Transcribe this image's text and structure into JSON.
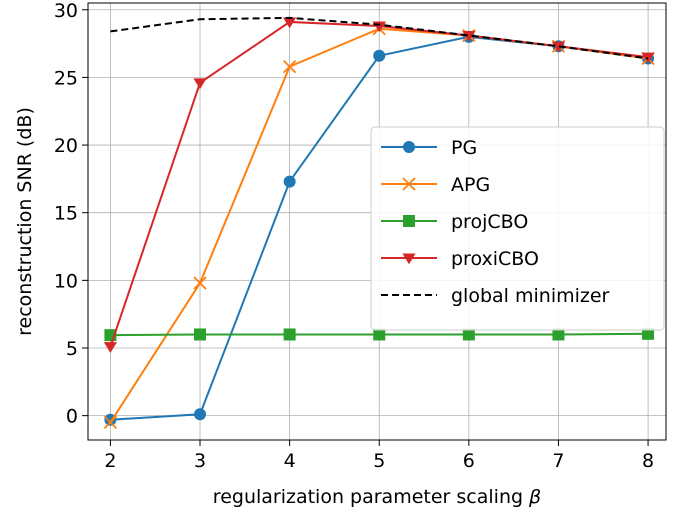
{
  "chart_data": {
    "type": "line",
    "title": "",
    "xlabel": "regularization parameter scaling",
    "xlabel_symbol": "β",
    "ylabel": "reconstruction SNR (dB)",
    "xlim": [
      1.75,
      8.2
    ],
    "ylim": [
      -1.8,
      30.5
    ],
    "xticks": [
      2,
      3,
      4,
      5,
      6,
      7,
      8
    ],
    "yticks": [
      0,
      5,
      10,
      15,
      20,
      25,
      30
    ],
    "grid": true,
    "legend_position": "center-right",
    "x": [
      2,
      3,
      4,
      5,
      6,
      7,
      8
    ],
    "series": [
      {
        "name": "PG",
        "color": "#1f77b4",
        "marker": "circle",
        "dash": "solid",
        "values": [
          -0.3,
          0.1,
          17.3,
          26.6,
          28.0,
          27.3,
          26.4
        ]
      },
      {
        "name": "APG",
        "color": "#ff7f0e",
        "marker": "x",
        "dash": "solid",
        "values": [
          -0.5,
          9.8,
          25.8,
          28.6,
          28.1,
          27.3,
          26.4
        ]
      },
      {
        "name": "projCBO",
        "color": "#2ca02c",
        "marker": "square",
        "dash": "solid",
        "values": [
          5.95,
          6.0,
          6.0,
          6.0,
          6.0,
          6.0,
          6.05
        ]
      },
      {
        "name": "proxiCBO",
        "color": "#d62728",
        "marker": "triangle-down",
        "dash": "solid",
        "values": [
          5.1,
          24.6,
          29.1,
          28.8,
          28.1,
          27.3,
          26.5
        ]
      },
      {
        "name": "global minimizer",
        "color": "#000000",
        "marker": "none",
        "dash": "dashed",
        "values": [
          28.4,
          29.3,
          29.4,
          28.9,
          28.1,
          27.3,
          26.4
        ]
      }
    ]
  }
}
